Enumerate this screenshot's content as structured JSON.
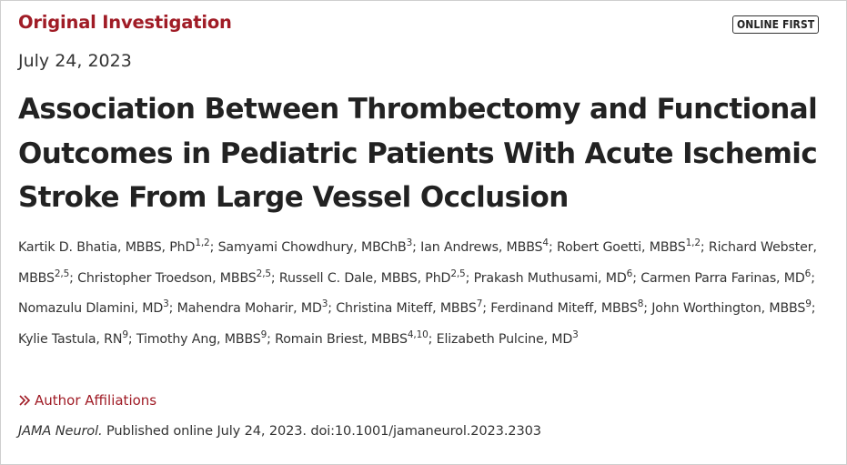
{
  "article_type": "Original Investigation",
  "badge": "ONLINE FIRST",
  "date": "July 24, 2023",
  "title": "Association Between Thrombectomy and Functional Outcomes in Pediatric Patients With Acute Ischemic Stroke From Large Vessel Occlusion",
  "authors": [
    {
      "name": "Kartik D. Bhatia, MBBS, PhD",
      "sup": "1,2"
    },
    {
      "name": "Samyami Chowdhury, MBChB",
      "sup": "3"
    },
    {
      "name": "Ian Andrews, MBBS",
      "sup": "4"
    },
    {
      "name": "Robert Goetti, MBBS",
      "sup": "1,2"
    },
    {
      "name": "Richard Webster, MBBS",
      "sup": "2,5"
    },
    {
      "name": "Christopher Troedson, MBBS",
      "sup": "2,5"
    },
    {
      "name": "Russell C. Dale, MBBS, PhD",
      "sup": "2,5"
    },
    {
      "name": "Prakash Muthusami, MD",
      "sup": "6"
    },
    {
      "name": "Carmen Parra Farinas, MD",
      "sup": "6"
    },
    {
      "name": "Nomazulu Dlamini, MD",
      "sup": "3"
    },
    {
      "name": "Mahendra Moharir, MD",
      "sup": "3"
    },
    {
      "name": "Christina Miteff, MBBS",
      "sup": "7"
    },
    {
      "name": "Ferdinand Miteff, MBBS",
      "sup": "8"
    },
    {
      "name": "John Worthington, MBBS",
      "sup": "9"
    },
    {
      "name": "Kylie Tastula, RN",
      "sup": "9"
    },
    {
      "name": "Timothy Ang, MBBS",
      "sup": "9"
    },
    {
      "name": "Romain Briest, MBBS",
      "sup": "4,10"
    },
    {
      "name": "Elizabeth Pulcine, MD",
      "sup": "3"
    }
  ],
  "affiliations_link": "Author Affiliations",
  "citation": {
    "journal": "JAMA Neurol.",
    "text": " Published online July 24, 2023. doi:10.1001/jamaneurol.2023.2303"
  },
  "colors": {
    "accent": "#a01c26",
    "text": "#222222",
    "border": "#cfcfcf"
  }
}
